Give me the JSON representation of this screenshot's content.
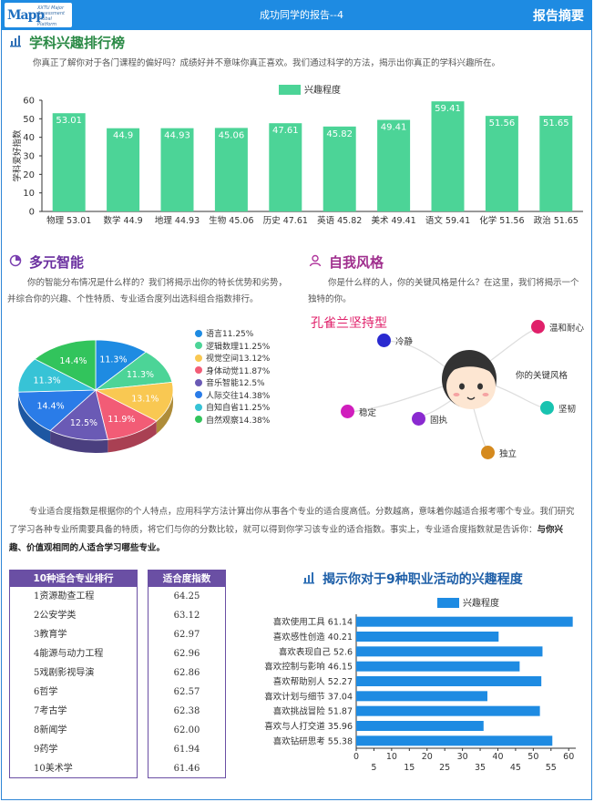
{
  "header": {
    "logo_mark": "Mapp",
    "logo_sub": "XXTU Major Assessment Global Platform",
    "title": "成功同学的报告--4",
    "right_label": "报告摘要"
  },
  "interest": {
    "title": "学科兴趣排行榜",
    "intro": "你真正了解你对于各门课程的偏好吗？成绩好并不意味你真正喜欢。我们通过科学的方法，揭示出你真正的学科兴趣所在。",
    "chart_data": {
      "type": "bar",
      "categories": [
        "物理",
        "数学",
        "地理",
        "生物",
        "历史",
        "英语",
        "美术",
        "语文",
        "化学",
        "政治"
      ],
      "tick_labels": [
        "物理 53.01",
        "数学 44.9",
        "地理 44.93",
        "生物 45.06",
        "历史 47.61",
        "英语 45.82",
        "美术 49.41",
        "语文 59.41",
        "化学 51.56",
        "政治 51.65"
      ],
      "series": [
        {
          "name": "兴趣程度",
          "values": [
            53.01,
            44.9,
            44.93,
            45.06,
            47.61,
            45.82,
            49.41,
            59.41,
            51.56,
            51.65
          ]
        }
      ],
      "ylabel": "学科爱好指数",
      "ylim": [
        0,
        60
      ],
      "yticks": [
        0,
        10,
        20,
        30,
        40,
        50,
        60
      ],
      "color": "#4cd497",
      "legend": "top"
    }
  },
  "multi": {
    "title": "多元智能",
    "intro": "你的智能分布情况是什么样的？我们将揭示出你的特长优势和劣势，并综合你的兴趣、个性特质、专业适合度列出选科组合指数排行。",
    "chart_data": {
      "type": "pie",
      "labels": [
        "语言",
        "逻辑数理",
        "视觉空间",
        "身体动觉",
        "音乐智能",
        "人际交往",
        "自知自省",
        "自然观察"
      ],
      "legend_labels": [
        "语言11.25%",
        "逻辑数理11.25%",
        "视觉空间13.12%",
        "身体动觉11.87%",
        "音乐智能12.5%",
        "人际交往14.38%",
        "自知自省11.25%",
        "自然观察14.38%"
      ],
      "values": [
        11.25,
        11.25,
        13.12,
        11.87,
        12.5,
        14.38,
        11.25,
        14.38
      ],
      "slice_labels": [
        "11.3%",
        "11.3%",
        "13.1%",
        "11.9%",
        "12.5%",
        "14.4%",
        "11.3%",
        "14.4%"
      ],
      "colors": [
        "#1e8be2",
        "#4cd497",
        "#f9c852",
        "#f25c76",
        "#6a5ab5",
        "#2a7ce8",
        "#37c3d6",
        "#32c45c"
      ],
      "legend": "right"
    }
  },
  "style": {
    "title": "自我风格",
    "intro": "你是什么样的人，你的关键风格是什么？在这里，我们将揭示一个独特的你。",
    "type_label": "孔雀兰坚持型",
    "center_label": "你的关键风格",
    "nodes": [
      {
        "label": "冷静",
        "color": "#2a2ad0"
      },
      {
        "label": "温和耐心",
        "color": "#e0206a"
      },
      {
        "label": "坚韧",
        "color": "#18c3b0"
      },
      {
        "label": "独立",
        "color": "#d58a1e"
      },
      {
        "label": "固执",
        "color": "#8a2ad0"
      },
      {
        "label": "稳定",
        "color": "#d01ebd"
      }
    ]
  },
  "fit": {
    "desc_main": "专业适合度指数是根据你的个人特点，应用科学方法计算出你从事各个专业的适合度高低。分数越高，意味着你越适合报考哪个专业。我们研究了学习各种专业所需要具备的特质，将它们与你的分数比较，就可以得到你学习该专业的适合指数。事实上，专业适合度指数就是告诉你：",
    "desc_bold": "与你兴趣、价值观相同的人适合学习哪些专业。",
    "table": {
      "col1": "10种适合专业排行",
      "col2": "适合度指数",
      "rows": [
        {
          "rank": "1",
          "name": "资源勘查工程",
          "score": "64.25"
        },
        {
          "rank": "2",
          "name": "公安学类",
          "score": "63.12"
        },
        {
          "rank": "3",
          "name": "教育学",
          "score": "62.97"
        },
        {
          "rank": "4",
          "name": "能源与动力工程",
          "score": "62.96"
        },
        {
          "rank": "5",
          "name": "戏剧影视导演",
          "score": "62.86"
        },
        {
          "rank": "6",
          "name": "哲学",
          "score": "62.57"
        },
        {
          "rank": "7",
          "name": "考古学",
          "score": "62.38"
        },
        {
          "rank": "8",
          "name": "新闻学",
          "score": "62.00"
        },
        {
          "rank": "9",
          "name": "药学",
          "score": "61.94"
        },
        {
          "rank": "10",
          "name": "美术学",
          "score": "61.46"
        }
      ]
    }
  },
  "career": {
    "title": "揭示你对于9种职业活动的兴趣程度",
    "chart_data": {
      "type": "bar",
      "orientation": "horizontal",
      "categories": [
        "喜欢使用工具",
        "喜欢感性创造",
        "喜欢表现自己",
        "喜欢控制与影响",
        "喜欢帮助别人",
        "喜欢计划与细节",
        "喜欢挑战冒险",
        "喜欢与人打交道",
        "喜欢钻研思考"
      ],
      "tick_labels": [
        "喜欢使用工具 61.14",
        "喜欢感性创造 40.21",
        "喜欢表现自己 52.6",
        "喜欢控制与影响 46.15",
        "喜欢帮助别人 52.27",
        "喜欢计划与细节 37.04",
        "喜欢挑战冒险 51.87",
        "喜欢与人打交道 35.96",
        "喜欢钻研思考 55.38"
      ],
      "series": [
        {
          "name": "兴趣程度",
          "values": [
            61.14,
            40.21,
            52.6,
            46.15,
            52.27,
            37.04,
            51.87,
            35.96,
            55.38
          ]
        }
      ],
      "xlim": [
        0,
        62
      ],
      "xticks_row1": [
        0,
        10,
        20,
        30,
        40,
        50,
        60
      ],
      "xticks_row2": [
        5,
        15,
        25,
        35,
        45,
        55
      ],
      "color": "#1e8be2",
      "legend": "top"
    }
  }
}
